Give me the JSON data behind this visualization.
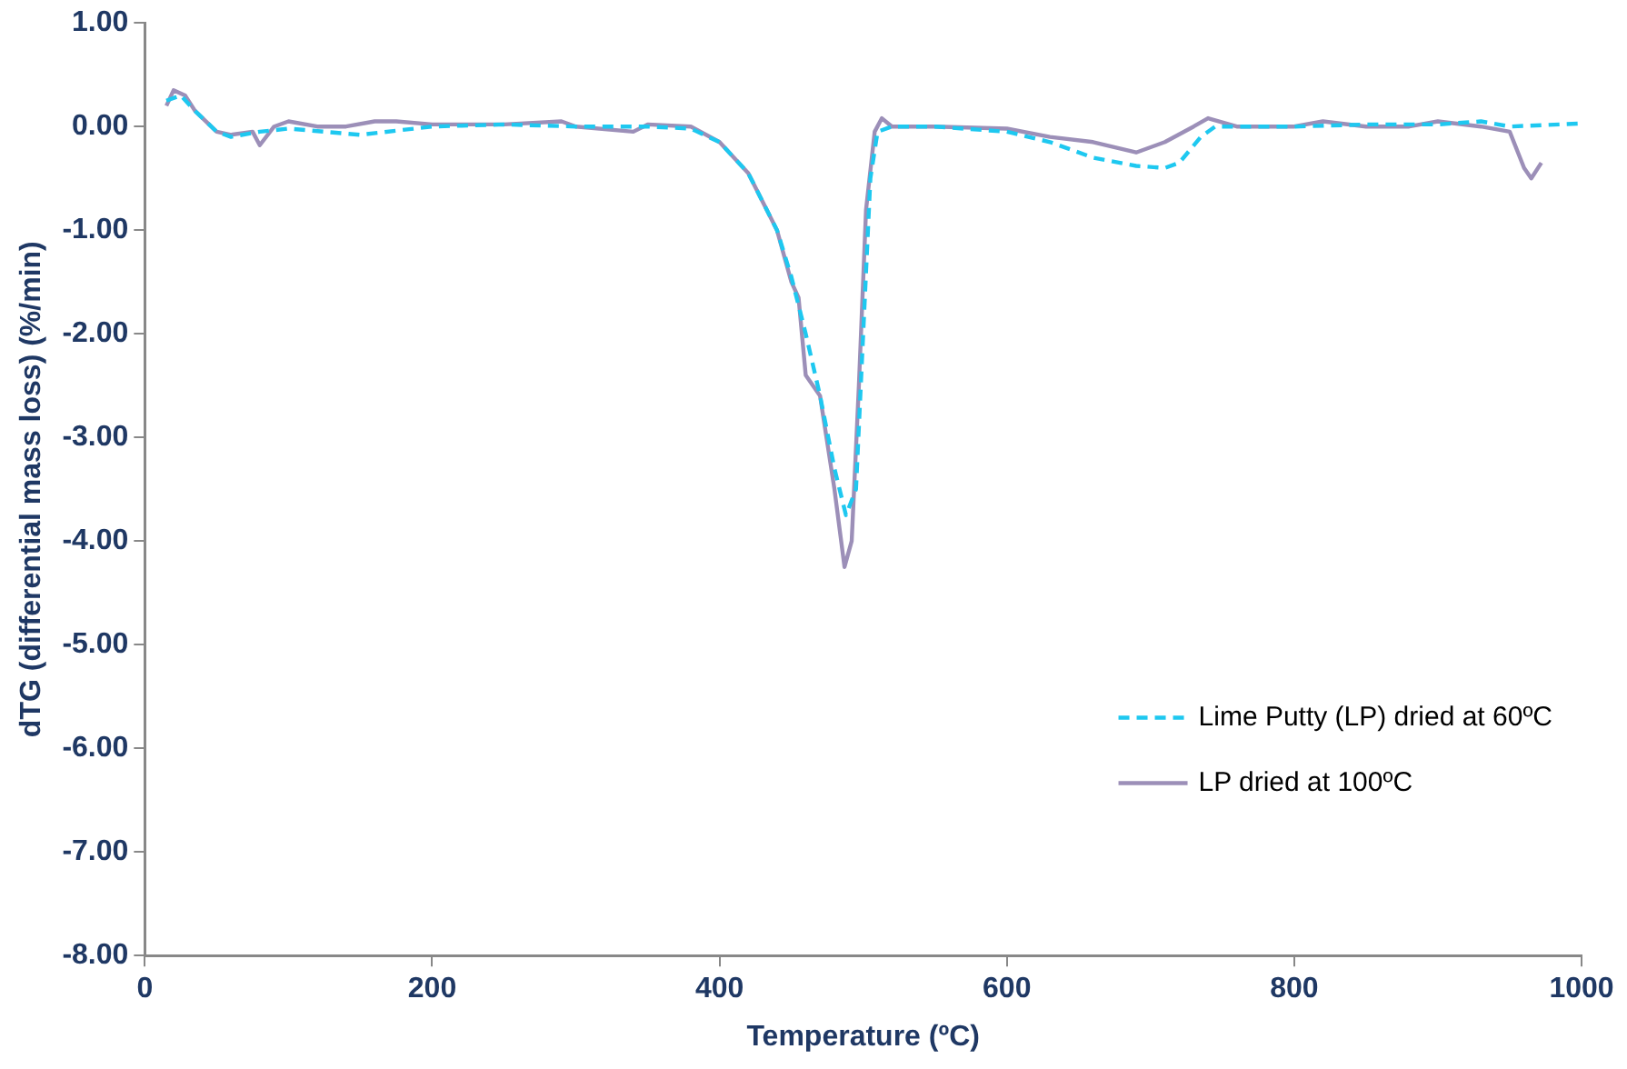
{
  "chart_data": {
    "type": "line",
    "xlabel": "Temperature (ºC)",
    "ylabel": "dTG (differential mass loss) (%/min)",
    "xlim": [
      0,
      1000
    ],
    "xticks": [
      0,
      200,
      400,
      600,
      800,
      1000
    ],
    "ylim": [
      -8,
      1
    ],
    "yticks": [
      {
        "value": 1,
        "label": "1.00"
      },
      {
        "value": 0,
        "label": "0.00"
      },
      {
        "value": -1,
        "label": "-1.00"
      },
      {
        "value": -2,
        "label": "-2.00"
      },
      {
        "value": -3,
        "label": "-3.00"
      },
      {
        "value": -4,
        "label": "-4.00"
      },
      {
        "value": -5,
        "label": "-5.00"
      },
      {
        "value": -6,
        "label": "-6.00"
      },
      {
        "value": -7,
        "label": "-7.00"
      },
      {
        "value": -8,
        "label": "-8.00"
      }
    ],
    "grid": false,
    "legend": "right",
    "marker": "none",
    "series": [
      {
        "name": "Lime Putty (LP) dried at 60ºC",
        "color": "#1ec8f0",
        "line_style": "dashed",
        "x": [
          15,
          25,
          35,
          50,
          60,
          80,
          100,
          150,
          200,
          250,
          300,
          350,
          380,
          400,
          420,
          440,
          450,
          460,
          470,
          480,
          488,
          495,
          500,
          505,
          510,
          520,
          550,
          600,
          630,
          660,
          690,
          710,
          720,
          735,
          745,
          800,
          850,
          900,
          930,
          950,
          1000
        ],
        "values": [
          0.25,
          0.3,
          0.15,
          -0.05,
          -0.1,
          -0.05,
          -0.02,
          -0.08,
          0,
          0.02,
          0,
          0,
          -0.02,
          -0.15,
          -0.45,
          -1,
          -1.45,
          -2,
          -2.6,
          -3.3,
          -3.75,
          -3.5,
          -2,
          -0.5,
          -0.05,
          0,
          0,
          -0.05,
          -0.15,
          -0.3,
          -0.38,
          -0.4,
          -0.35,
          -0.1,
          0,
          0,
          0.02,
          0.02,
          0.05,
          0,
          0.03
        ]
      },
      {
        "name": "LP dried at 100ºC",
        "color": "#9c8fb8",
        "line_style": "solid",
        "x": [
          15,
          20,
          28,
          35,
          50,
          60,
          75,
          80,
          90,
          100,
          120,
          140,
          160,
          175,
          200,
          250,
          290,
          300,
          340,
          350,
          380,
          400,
          420,
          440,
          450,
          455,
          460,
          470,
          480,
          487,
          492,
          497,
          502,
          508,
          513,
          520,
          550,
          600,
          630,
          660,
          690,
          710,
          730,
          740,
          760,
          800,
          820,
          850,
          880,
          900,
          930,
          950,
          960,
          965,
          972
        ],
        "values": [
          0.2,
          0.35,
          0.3,
          0.15,
          -0.05,
          -0.08,
          -0.05,
          -0.18,
          0,
          0.05,
          0,
          0,
          0.05,
          0.05,
          0.02,
          0.02,
          0.05,
          0,
          -0.05,
          0.02,
          0,
          -0.15,
          -0.45,
          -1,
          -1.5,
          -1.65,
          -2.4,
          -2.6,
          -3.5,
          -4.25,
          -4,
          -2.5,
          -0.8,
          -0.05,
          0.08,
          0,
          0,
          -0.02,
          -0.1,
          -0.15,
          -0.25,
          -0.15,
          0,
          0.08,
          0,
          0,
          0.05,
          0,
          0,
          0.05,
          0,
          -0.05,
          -0.4,
          -0.5,
          -0.35
        ]
      }
    ]
  }
}
